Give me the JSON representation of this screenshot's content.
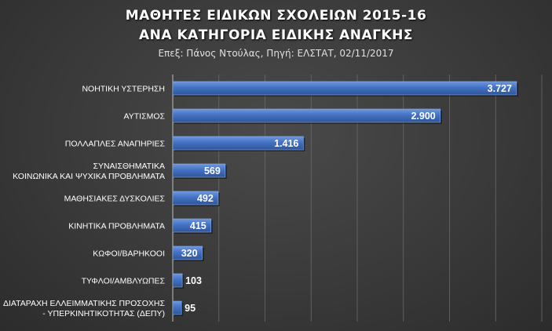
{
  "chart_data": {
    "type": "bar",
    "orientation": "horizontal",
    "title": "ΜΑΘΗΤΕΣ ΕΙΔΙΚΩΝ ΣΧΟΛΕΙΩΝ 2015-16",
    "title_line2": "ΑΝΑ ΚΑΤΗΓΟΡΙΑ ΕΙΔΙΚΗΣ ΑΝΑΓΚΗΣ",
    "subtitle": "Επεξ: Πάνος Ντούλας, Πηγή: ΕΛΣΤΑΤ, 02/11/2017",
    "categories": [
      [
        "ΝΟΗΤΙΚΗ ΥΣΤΕΡΗΣΗ"
      ],
      [
        "ΑΥΤΙΣΜΟΣ"
      ],
      [
        "ΠΟΛΛΑΠΛΕΣ ΑΝΑΠΗΡΙΕΣ"
      ],
      [
        "ΣΥΝΑΙΣΘΗΜΑΤΙΚΑ",
        "ΚΟΙΝΩΝΙΚΑ ΚΑΙ ΨΥΧΙΚΑ ΠΡΟΒΛΗΜΑΤΑ"
      ],
      [
        "ΜΑΘΗΣΙΑΚΕΣ ΔΥΣΚΟΛΙΕΣ"
      ],
      [
        "ΚΙΝΗΤΙΚΑ ΠΡΟΒΛΗΜΑΤΑ"
      ],
      [
        "ΚΩΦΟΙ/ΒΑΡΗΚΟΟΙ"
      ],
      [
        "ΤΥΦΛΟΙ/ΑΜΒΛΥΩΠΕΣ"
      ],
      [
        "ΔΙΑΤΑΡΑΧΗ ΕΛΛΕΙΜΜΑΤΙΚΗΣ ΠΡΟΣΟΧΗΣ",
        "- ΥΠΕΡΚΙΝΗΤΙΚΟΤΗΤΑΣ (ΔΕΠΥ)"
      ]
    ],
    "values": [
      3727,
      2900,
      1416,
      569,
      492,
      415,
      320,
      103,
      95
    ],
    "value_labels": [
      "3.727",
      "2.900",
      "1.416",
      "569",
      "492",
      "415",
      "320",
      "103",
      "95"
    ],
    "xlim": [
      0,
      4000
    ],
    "grid": "vertical",
    "bar_color": "#4472c4"
  }
}
